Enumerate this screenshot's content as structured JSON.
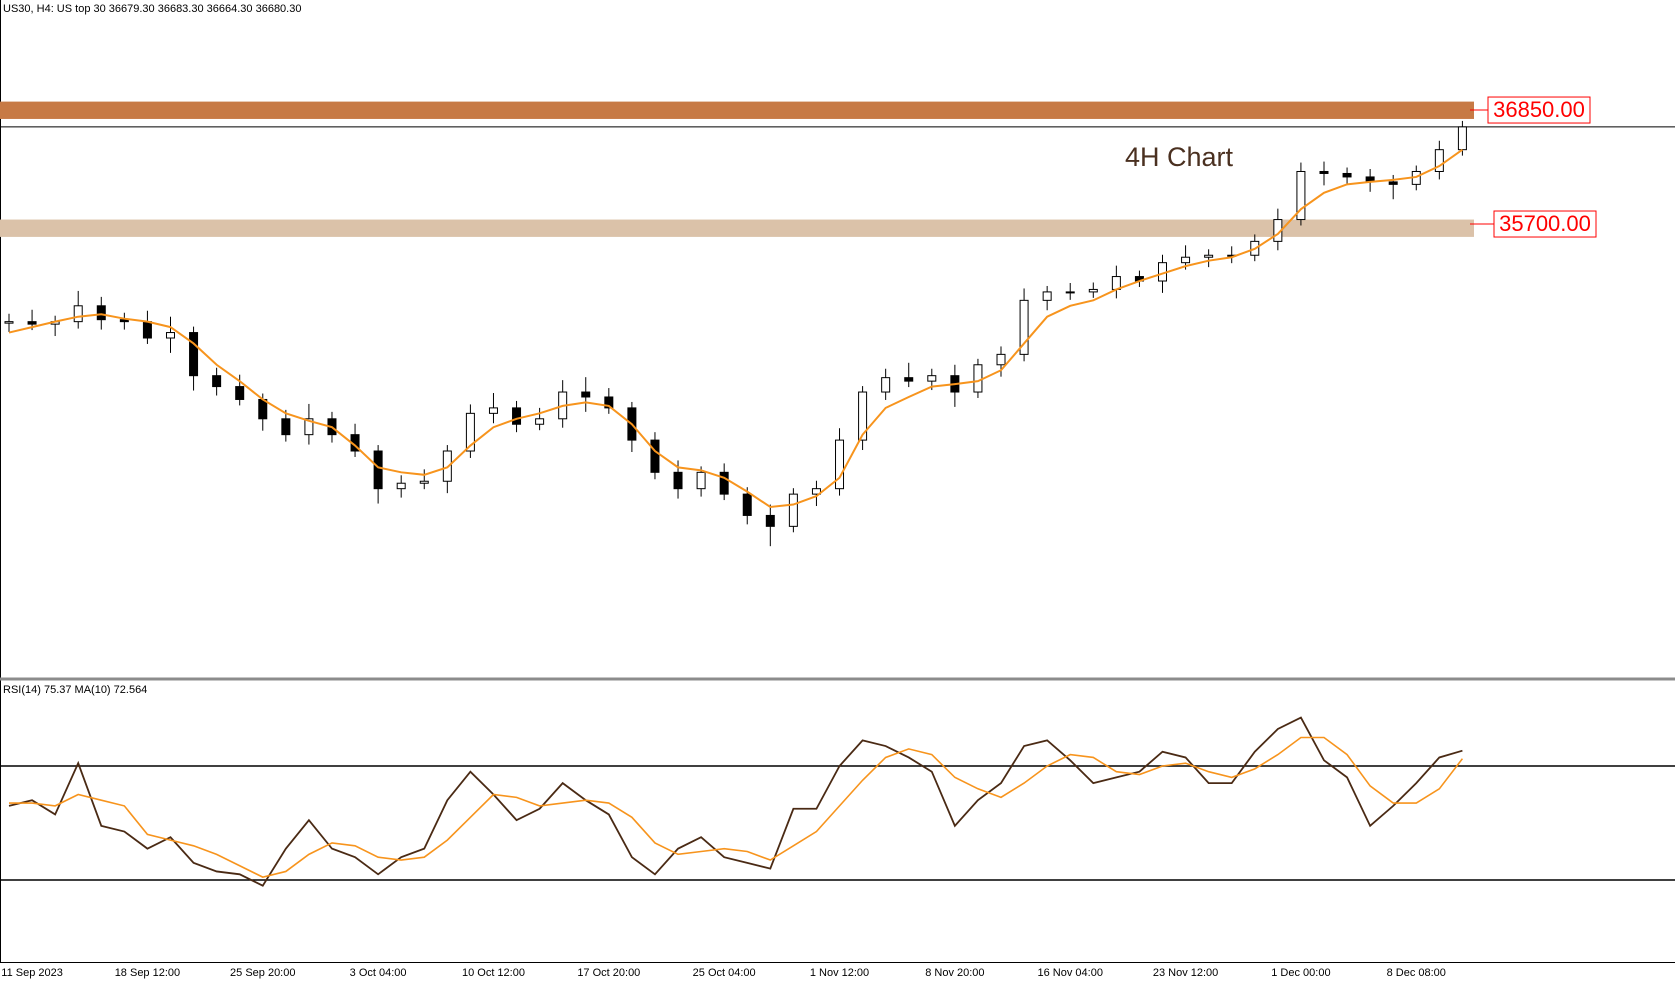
{
  "chart_data": [
    {
      "type": "candlestick",
      "header": "US30, H4:  US top 30  36679.30 36683.30 36664.30 36680.30",
      "annotation": "4H Chart",
      "ylim": [
        31120,
        37960
      ],
      "categories": [
        null,
        "11 Sep 2023",
        null,
        null,
        null,
        null,
        "18 Sep 12:00",
        null,
        null,
        null,
        null,
        "25 Sep 20:00",
        null,
        null,
        null,
        null,
        "3 Oct 04:00",
        null,
        null,
        null,
        null,
        "10 Oct 12:00",
        null,
        null,
        null,
        null,
        "17 Oct 20:00",
        null,
        null,
        null,
        null,
        "25 Oct 04:00",
        null,
        null,
        null,
        null,
        "1 Nov 12:00",
        null,
        null,
        null,
        null,
        "8 Nov 20:00",
        null,
        null,
        null,
        null,
        "16 Nov 04:00",
        null,
        null,
        null,
        null,
        "23 Nov 12:00",
        null,
        null,
        null,
        null,
        "1 Dec 00:00",
        null,
        null,
        null,
        null,
        "8 Dec 08:00",
        null,
        null
      ],
      "open": [
        34700,
        34715,
        34690,
        34715,
        34875,
        34735,
        34715,
        34550,
        34605,
        34170,
        34060,
        33930,
        33735,
        33575,
        33735,
        33575,
        33410,
        33030,
        33085,
        33105,
        33410,
        33790,
        33845,
        33680,
        33735,
        34005,
        33955,
        33845,
        33520,
        33195,
        33030,
        33195,
        32975,
        32760,
        32650,
        32975,
        33030,
        33520,
        34005,
        34150,
        34115,
        34170,
        34005,
        34280,
        34385,
        34930,
        35015,
        35015,
        35040,
        35170,
        35125,
        35310,
        35365,
        35385,
        35385,
        35525,
        35745,
        36230,
        36210,
        36175,
        36125,
        36100,
        36230,
        36450
      ],
      "high": [
        34795,
        34835,
        34775,
        35025,
        34965,
        34805,
        34825,
        34765,
        34665,
        34250,
        34180,
        33990,
        33825,
        33885,
        33805,
        33685,
        33470,
        33165,
        33225,
        33470,
        33880,
        33995,
        33915,
        33845,
        34125,
        34155,
        34045,
        33905,
        33600,
        33315,
        33255,
        33285,
        33045,
        32870,
        33035,
        33110,
        33640,
        34065,
        34240,
        34300,
        34240,
        34280,
        34340,
        34465,
        35050,
        35075,
        35105,
        35110,
        35280,
        35230,
        35390,
        35485,
        35445,
        35475,
        35595,
        35855,
        36320,
        36330,
        36270,
        36255,
        36195,
        36290,
        36540,
        36740
      ],
      "low": [
        34610,
        34630,
        34570,
        34645,
        34635,
        34635,
        34490,
        34400,
        34020,
        33970,
        33870,
        33615,
        33505,
        33475,
        33495,
        33350,
        32880,
        32940,
        33025,
        32985,
        33340,
        33690,
        33600,
        33620,
        33645,
        33805,
        33785,
        33400,
        33125,
        32930,
        32950,
        32915,
        32670,
        32450,
        32590,
        32855,
        32960,
        33420,
        33925,
        34055,
        34025,
        33855,
        33945,
        34160,
        34315,
        34830,
        34935,
        34955,
        34950,
        35065,
        35005,
        35240,
        35265,
        35305,
        35325,
        35435,
        35685,
        36090,
        36105,
        36025,
        35950,
        36040,
        36150,
        36390
      ],
      "close": [
        34715,
        34690,
        34715,
        34875,
        34735,
        34715,
        34550,
        34605,
        34170,
        34060,
        33930,
        33735,
        33575,
        33735,
        33575,
        33410,
        33030,
        33085,
        33105,
        33410,
        33790,
        33845,
        33680,
        33735,
        34005,
        33955,
        33845,
        33520,
        33195,
        33030,
        33195,
        32975,
        32760,
        32650,
        32975,
        33030,
        33520,
        34005,
        34150,
        34115,
        34170,
        34005,
        34280,
        34385,
        34930,
        35015,
        35015,
        35040,
        35170,
        35125,
        35310,
        35365,
        35385,
        35385,
        35525,
        35745,
        36230,
        36210,
        36175,
        36125,
        36100,
        36230,
        36450,
        36680
      ],
      "candle_color": "#000000",
      "ma": {
        "color": "#f7941d",
        "values": [
          34605,
          34660,
          34715,
          34765,
          34790,
          34745,
          34715,
          34660,
          34495,
          34280,
          34115,
          33930,
          33790,
          33715,
          33650,
          33465,
          33245,
          33195,
          33170,
          33245,
          33465,
          33650,
          33735,
          33790,
          33865,
          33900,
          33865,
          33680,
          33410,
          33245,
          33215,
          33140,
          33000,
          32845,
          32870,
          32955,
          33140,
          33575,
          33845,
          33955,
          34060,
          34085,
          34115,
          34225,
          34495,
          34765,
          34875,
          34930,
          35040,
          35125,
          35200,
          35275,
          35330,
          35365,
          35450,
          35600,
          35850,
          36015,
          36100,
          36125,
          36145,
          36175,
          36285,
          36450
        ]
      },
      "zones": [
        {
          "value": 36850,
          "label": "36850.00",
          "low": 36760,
          "high": 36935,
          "color": "#c77a45"
        },
        {
          "value": 35700,
          "label": "35700.00",
          "low": 35570,
          "high": 35745,
          "color": "#dbc2a9"
        }
      ],
      "price_line": 36680,
      "label_color": "#ff0000"
    },
    {
      "type": "line",
      "title": "RSI(14) 75.37 MA(10) 72.564",
      "ylim": [
        0,
        100
      ],
      "levels": [
        30,
        70
      ],
      "series": [
        {
          "color": "#4a2a14",
          "values": [
            56,
            58,
            53,
            71,
            49,
            47,
            41,
            45,
            36,
            33,
            32,
            28,
            41,
            51,
            41,
            38,
            32,
            38,
            41,
            58,
            68,
            60,
            51,
            55,
            64,
            58,
            53,
            38,
            32,
            41,
            45,
            38,
            36,
            34,
            55,
            55,
            70,
            79,
            77,
            73,
            68,
            49,
            58,
            64,
            77,
            79,
            72,
            64,
            66,
            68,
            75,
            73,
            64,
            64,
            75,
            83,
            87,
            72,
            66,
            49,
            56,
            64,
            73,
            75.37
          ]
        },
        {
          "color": "#f7941d",
          "values": [
            57,
            57,
            56,
            60,
            58,
            56,
            46,
            44,
            42,
            39,
            35,
            31,
            33,
            39,
            43,
            42,
            38,
            37,
            38,
            44,
            52,
            60,
            59,
            56,
            57,
            58,
            57,
            52,
            43,
            39,
            40,
            41,
            40,
            37,
            42,
            47,
            56,
            65,
            73,
            76,
            74,
            66,
            62,
            59,
            64,
            70,
            74,
            73,
            68,
            67,
            70,
            71,
            68,
            66,
            69,
            74,
            80,
            80,
            74,
            63,
            57,
            57,
            62,
            72.564
          ]
        }
      ]
    }
  ]
}
